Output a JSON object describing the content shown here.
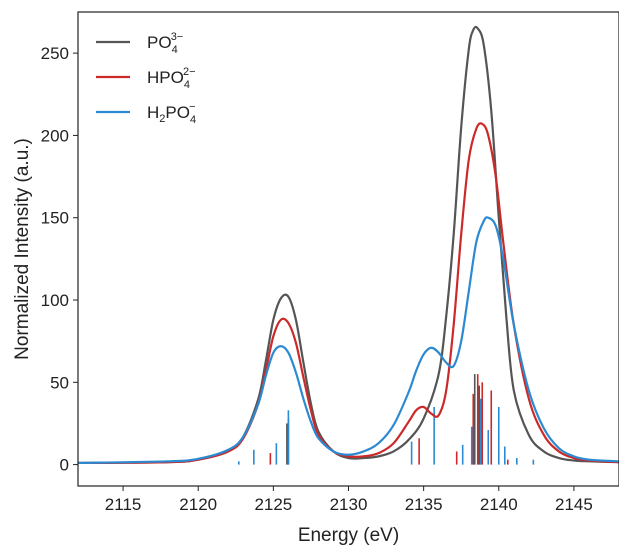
{
  "chart_data": {
    "type": "line",
    "xlabel": "Energy (eV)",
    "ylabel": "Normalized Intensity (a.u.)",
    "xlim": [
      2112,
      2148
    ],
    "ylim": [
      -13,
      275
    ],
    "xticks": [
      2115,
      2120,
      2125,
      2130,
      2135,
      2140,
      2145
    ],
    "yticks": [
      0,
      50,
      100,
      150,
      200,
      250
    ],
    "legend": {
      "placement": "top-left",
      "entries": [
        {
          "base": "PO",
          "sub": "4",
          "sup": "3−"
        },
        {
          "base": "HPO",
          "sub": "4",
          "sup": "2−"
        },
        {
          "base": "H",
          "sub1": "2",
          "mid": "PO",
          "sub": "4",
          "sup": "−"
        }
      ]
    },
    "series": [
      {
        "color": "#555555",
        "x": [
          2112,
          2118,
          2120,
          2122,
          2123,
          2124,
          2124.5,
          2125,
          2125.5,
          2126,
          2126.5,
          2127,
          2127.5,
          2128,
          2129,
          2130,
          2131,
          2132,
          2133,
          2134,
          2135,
          2136,
          2136.5,
          2137,
          2137.5,
          2138,
          2138.3,
          2138.6,
          2139,
          2139.5,
          2140,
          2140.5,
          2141,
          2142,
          2143,
          2144,
          2145,
          2146,
          2148
        ],
        "values": [
          1,
          1.5,
          3,
          8,
          17,
          40,
          63,
          88,
          101,
          102,
          88,
          62,
          37,
          20,
          8,
          4,
          4,
          5,
          8,
          15,
          28,
          55,
          90,
          140,
          205,
          252,
          264,
          265,
          255,
          215,
          150,
          90,
          45,
          18,
          8,
          4,
          2.5,
          2,
          1.5
        ]
      },
      {
        "color": "#cc2a2a",
        "x": [
          2112,
          2118,
          2120,
          2122,
          2123,
          2124,
          2124.5,
          2125,
          2125.5,
          2126,
          2126.5,
          2127,
          2127.5,
          2128,
          2129,
          2130,
          2131,
          2132,
          2133,
          2134,
          2134.5,
          2135,
          2135.5,
          2136,
          2136.5,
          2137,
          2137.5,
          2138,
          2138.5,
          2138.9,
          2139.3,
          2139.8,
          2140.3,
          2141,
          2142,
          2143,
          2144,
          2145,
          2146,
          2148
        ],
        "values": [
          1,
          1.5,
          3,
          8,
          16,
          37,
          57,
          78,
          88,
          86,
          74,
          53,
          33,
          18,
          8,
          5,
          5,
          7,
          13,
          26,
          33,
          35,
          31,
          30,
          45,
          85,
          140,
          185,
          204,
          207,
          200,
          175,
          135,
          85,
          40,
          18,
          8,
          4,
          2.5,
          1.5
        ]
      },
      {
        "color": "#2b8ad1",
        "x": [
          2112,
          2118,
          2120,
          2122,
          2123,
          2124,
          2124.5,
          2125,
          2125.5,
          2126,
          2126.5,
          2127,
          2127.5,
          2128,
          2129,
          2130,
          2131,
          2132,
          2133,
          2134,
          2134.5,
          2135,
          2135.5,
          2136,
          2136.5,
          2137,
          2137.5,
          2138,
          2138.5,
          2139,
          2139.3,
          2139.8,
          2140.3,
          2141,
          2142,
          2143,
          2144,
          2145,
          2146,
          2148
        ],
        "values": [
          1,
          2,
          3.5,
          9,
          17,
          37,
          54,
          68,
          72,
          68,
          56,
          40,
          26,
          16,
          8,
          6,
          8,
          13,
          24,
          44,
          57,
          67,
          71,
          68,
          62,
          60,
          75,
          105,
          135,
          148,
          150,
          145,
          125,
          85,
          45,
          22,
          10,
          5,
          3,
          2
        ]
      }
    ],
    "sticks": [
      {
        "color": "#555555",
        "x": [
          2125.9,
          2138.4,
          2138.7
        ],
        "values": [
          25,
          55,
          48
        ]
      },
      {
        "color": "#cc2a2a",
        "x": [
          2124.8,
          2126,
          2134.7,
          2137.2,
          2138.3,
          2138.6,
          2138.9,
          2139.5,
          2140.6
        ],
        "values": [
          7,
          28,
          16,
          8,
          43,
          55,
          50,
          45,
          3
        ]
      },
      {
        "color": "#2b8ad1",
        "x": [
          2122.7,
          2123.7,
          2125.2,
          2126,
          2134.2,
          2135.7,
          2137.6,
          2138.2,
          2138.8,
          2139.3,
          2140,
          2140.4,
          2141.2,
          2142.3
        ],
        "values": [
          2,
          9,
          13,
          33,
          14,
          35,
          12,
          23,
          40,
          21,
          35,
          11,
          4,
          3
        ]
      }
    ]
  }
}
